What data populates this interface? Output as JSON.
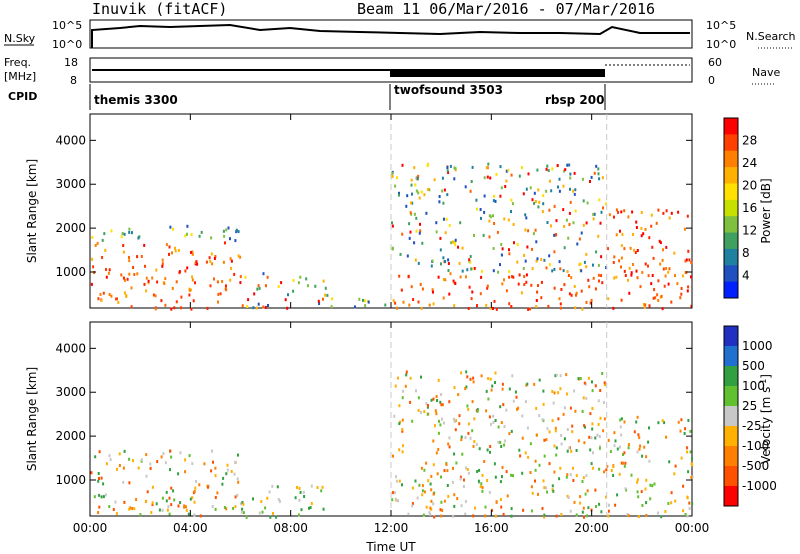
{
  "header": {
    "station": "Inuvik (fitACF)",
    "beam_date": "Beam 11  06/Mar/2016 - 07/Mar/2016"
  },
  "top_panels": {
    "nsky_label": "N.Sky",
    "nsky_ticks": [
      "10^5",
      "10^0"
    ],
    "nsearch_label": "N.Search",
    "nsearch_ticks": [
      "10^5",
      "10^0"
    ],
    "freq_label_1": "Freq.",
    "freq_label_2": "[MHz]",
    "freq_ticks": [
      "18",
      "8"
    ],
    "nave_label": "Nave",
    "nave_ticks": [
      "60",
      "0"
    ],
    "cpid_label": "CPID",
    "cpid_entries": [
      {
        "name": "themis 3300",
        "start_h": 0
      },
      {
        "name": "twofsound 3503",
        "start_h": 12
      },
      {
        "name": "rbsp 200",
        "start_h": 20.6
      }
    ]
  },
  "chart_data": [
    {
      "type": "heatmap",
      "title": "",
      "xlabel": "",
      "ylabel": "Slant Range [km]",
      "x_ticks": [
        "00:00",
        "04:00",
        "08:00",
        "12:00",
        "16:00",
        "20:00",
        "00:00"
      ],
      "xlim_hours": [
        0,
        24
      ],
      "y_ticks": [
        1000,
        2000,
        3000,
        4000
      ],
      "ylim": [
        180,
        4600
      ],
      "colorbar_label": "Power [dB]",
      "colorbar_ticks": [
        "28",
        "24",
        "20",
        "16",
        "12",
        "8",
        "4"
      ],
      "colorbar_colors": [
        "#ff0000",
        "#ff4000",
        "#ff8000",
        "#ffb000",
        "#ffe000",
        "#c8e000",
        "#80c040",
        "#40a060",
        "#2080a0",
        "#2050c0",
        "#0020ff"
      ],
      "regions": [
        {
          "t0": 0.0,
          "t1": 6.0,
          "r0": 180,
          "r1": 1700,
          "level": "high"
        },
        {
          "t0": 0.0,
          "t1": 6.0,
          "r0": 1700,
          "r1": 2100,
          "level": "low"
        },
        {
          "t0": 6.0,
          "t1": 9.5,
          "r0": 180,
          "r1": 1000,
          "level": "mixed"
        },
        {
          "t0": 9.5,
          "t1": 12.0,
          "r0": 180,
          "r1": 500,
          "level": "low"
        },
        {
          "t0": 12.0,
          "t1": 20.6,
          "r0": 180,
          "r1": 1000,
          "level": "high"
        },
        {
          "t0": 12.0,
          "t1": 20.6,
          "r0": 1000,
          "r1": 3500,
          "level": "mixed"
        },
        {
          "t0": 20.6,
          "t1": 24.0,
          "r0": 180,
          "r1": 600,
          "level": "high"
        },
        {
          "t0": 20.6,
          "t1": 24.0,
          "r0": 600,
          "r1": 2500,
          "level": "high"
        }
      ]
    },
    {
      "type": "heatmap",
      "title": "",
      "xlabel": "Time UT",
      "ylabel": "Slant Range [km]",
      "x_ticks": [
        "00:00",
        "04:00",
        "08:00",
        "12:00",
        "16:00",
        "20:00",
        "00:00"
      ],
      "xlim_hours": [
        0,
        24
      ],
      "y_ticks": [
        1000,
        2000,
        3000,
        4000
      ],
      "ylim": [
        180,
        4600
      ],
      "colorbar_label": "Velocity [m s^-1]",
      "colorbar_ticks": [
        "1000",
        "500",
        "100",
        "25",
        "-25",
        "-100",
        "-500",
        "-1000"
      ],
      "colorbar_colors": [
        "#2030c0",
        "#2070d0",
        "#30a040",
        "#60c030",
        "#c8c8c8",
        "#ffb000",
        "#ff8000",
        "#ff5000",
        "#ff0000"
      ],
      "regions": [
        {
          "t0": 0.0,
          "t1": 6.0,
          "r0": 180,
          "r1": 1700,
          "level": "mixed"
        },
        {
          "t0": 6.0,
          "t1": 9.5,
          "r0": 180,
          "r1": 900,
          "level": "green"
        },
        {
          "t0": 12.0,
          "t1": 20.6,
          "r0": 180,
          "r1": 1000,
          "level": "orange"
        },
        {
          "t0": 12.0,
          "t1": 20.6,
          "r0": 1000,
          "r1": 3500,
          "level": "orange"
        },
        {
          "t0": 20.6,
          "t1": 24.0,
          "r0": 180,
          "r1": 2500,
          "level": "orange"
        }
      ]
    }
  ],
  "colors": {
    "axis": "#000000",
    "divider": "#c8c8c8"
  }
}
